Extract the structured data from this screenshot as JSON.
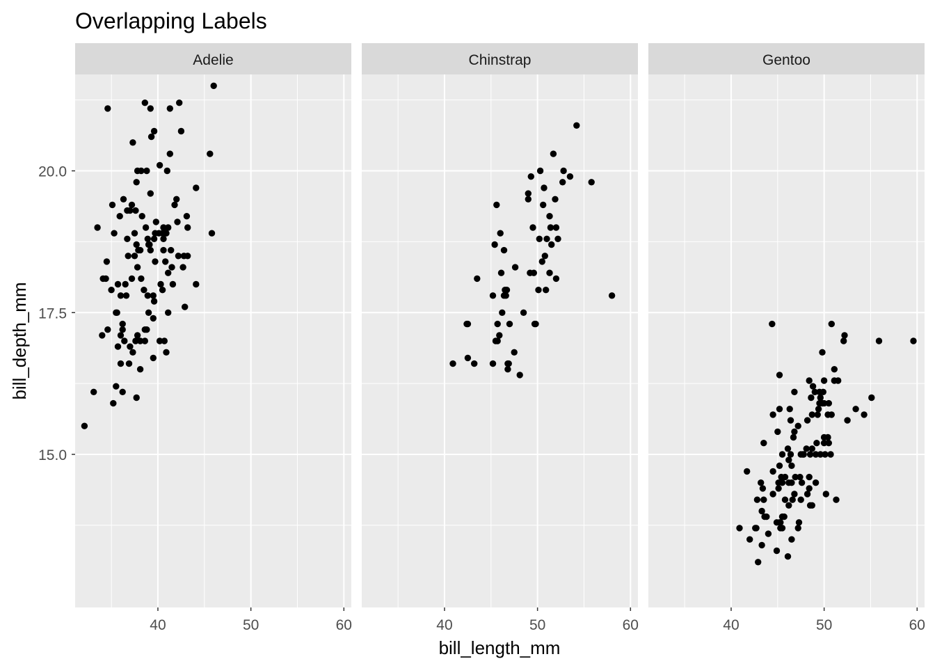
{
  "chart_data": {
    "type": "scatter",
    "title": "Overlapping Labels",
    "xlabel": "bill_length_mm",
    "ylabel": "bill_depth_mm",
    "xlim": [
      31.1,
      60.8
    ],
    "ylim": [
      12.3,
      21.7
    ],
    "x_ticks": [
      40,
      50,
      60
    ],
    "y_ticks": [
      15.0,
      17.5,
      20.0
    ],
    "y_tick_labels": [
      "15.0",
      "17.5",
      "20.0"
    ],
    "grid": true,
    "point_color": "#000000",
    "panel_background": "#ebebeb",
    "strip_background": "#d9d9d9",
    "panels": [
      {
        "label": "Adelie",
        "points": [
          [
            32.1,
            15.5
          ],
          [
            33.1,
            16.1
          ],
          [
            33.5,
            19.0
          ],
          [
            34.0,
            17.1
          ],
          [
            34.1,
            18.1
          ],
          [
            34.4,
            18.1
          ],
          [
            34.5,
            18.4
          ],
          [
            34.6,
            21.1
          ],
          [
            34.6,
            17.2
          ],
          [
            35.0,
            17.9
          ],
          [
            35.1,
            19.4
          ],
          [
            35.2,
            15.9
          ],
          [
            35.3,
            18.9
          ],
          [
            35.5,
            16.2
          ],
          [
            35.5,
            17.5
          ],
          [
            35.6,
            17.5
          ],
          [
            35.7,
            16.9
          ],
          [
            35.7,
            18.0
          ],
          [
            35.9,
            19.2
          ],
          [
            36.0,
            17.1
          ],
          [
            36.0,
            17.8
          ],
          [
            36.0,
            16.6
          ],
          [
            36.2,
            17.3
          ],
          [
            36.2,
            16.1
          ],
          [
            36.2,
            17.2
          ],
          [
            36.3,
            19.5
          ],
          [
            36.4,
            17.0
          ],
          [
            36.5,
            18.0
          ],
          [
            36.6,
            17.8
          ],
          [
            36.7,
            19.3
          ],
          [
            36.7,
            18.8
          ],
          [
            36.8,
            18.5
          ],
          [
            36.9,
            16.6
          ],
          [
            37.0,
            16.9
          ],
          [
            37.0,
            19.3
          ],
          [
            37.2,
            18.1
          ],
          [
            37.2,
            19.4
          ],
          [
            37.3,
            20.5
          ],
          [
            37.3,
            16.8
          ],
          [
            37.5,
            18.9
          ],
          [
            37.5,
            18.5
          ],
          [
            37.6,
            17.0
          ],
          [
            37.6,
            19.3
          ],
          [
            37.7,
            18.7
          ],
          [
            37.7,
            16.0
          ],
          [
            37.7,
            19.8
          ],
          [
            37.8,
            18.3
          ],
          [
            37.8,
            20.0
          ],
          [
            37.8,
            17.1
          ],
          [
            37.9,
            18.6
          ],
          [
            38.1,
            18.6
          ],
          [
            38.1,
            17.0
          ],
          [
            38.1,
            16.5
          ],
          [
            38.2,
            18.1
          ],
          [
            38.2,
            20.0
          ],
          [
            38.3,
            19.2
          ],
          [
            38.5,
            17.9
          ],
          [
            38.6,
            21.2
          ],
          [
            38.6,
            17.2
          ],
          [
            38.6,
            17.0
          ],
          [
            38.7,
            19.0
          ],
          [
            38.8,
            17.2
          ],
          [
            38.8,
            20.0
          ],
          [
            38.9,
            17.8
          ],
          [
            38.9,
            18.8
          ],
          [
            39.0,
            17.5
          ],
          [
            39.0,
            18.7
          ],
          [
            39.1,
            18.7
          ],
          [
            39.2,
            19.6
          ],
          [
            39.2,
            21.1
          ],
          [
            39.2,
            18.6
          ],
          [
            39.3,
            20.6
          ],
          [
            39.5,
            17.4
          ],
          [
            39.5,
            16.7
          ],
          [
            39.5,
            17.8
          ],
          [
            39.6,
            17.7
          ],
          [
            39.6,
            18.8
          ],
          [
            39.6,
            20.7
          ],
          [
            39.7,
            18.4
          ],
          [
            39.7,
            18.9
          ],
          [
            39.8,
            19.1
          ],
          [
            40.1,
            18.9
          ],
          [
            40.2,
            20.1
          ],
          [
            40.2,
            17.0
          ],
          [
            40.3,
            18.0
          ],
          [
            40.5,
            17.9
          ],
          [
            40.5,
            18.9
          ],
          [
            40.6,
            18.8
          ],
          [
            40.6,
            19.0
          ],
          [
            40.6,
            18.6
          ],
          [
            40.7,
            17.0
          ],
          [
            40.8,
            18.4
          ],
          [
            40.8,
            18.9
          ],
          [
            40.9,
            16.8
          ],
          [
            40.9,
            18.9
          ],
          [
            41.0,
            20.0
          ],
          [
            41.1,
            17.5
          ],
          [
            41.1,
            18.2
          ],
          [
            41.1,
            19.0
          ],
          [
            41.3,
            20.3
          ],
          [
            41.3,
            21.1
          ],
          [
            41.4,
            18.6
          ],
          [
            41.5,
            18.3
          ],
          [
            41.6,
            18.0
          ],
          [
            41.8,
            19.4
          ],
          [
            42.0,
            19.5
          ],
          [
            42.1,
            19.1
          ],
          [
            42.2,
            18.5
          ],
          [
            42.3,
            21.2
          ],
          [
            42.5,
            20.7
          ],
          [
            42.7,
            18.3
          ],
          [
            42.8,
            18.5
          ],
          [
            42.9,
            17.6
          ],
          [
            43.1,
            19.2
          ],
          [
            43.2,
            18.5
          ],
          [
            43.2,
            19.0
          ],
          [
            44.1,
            19.7
          ],
          [
            44.1,
            18.0
          ],
          [
            45.6,
            20.3
          ],
          [
            45.8,
            18.9
          ],
          [
            46.0,
            21.5
          ]
        ]
      },
      {
        "label": "Chinstrap",
        "points": [
          [
            40.9,
            16.6
          ],
          [
            42.4,
            17.3
          ],
          [
            42.5,
            17.3
          ],
          [
            42.5,
            16.7
          ],
          [
            43.2,
            16.6
          ],
          [
            43.5,
            18.1
          ],
          [
            45.2,
            17.8
          ],
          [
            45.2,
            16.6
          ],
          [
            45.4,
            18.7
          ],
          [
            45.5,
            17.0
          ],
          [
            45.6,
            19.4
          ],
          [
            45.7,
            17.0
          ],
          [
            45.7,
            17.3
          ],
          [
            45.9,
            17.1
          ],
          [
            46.0,
            18.9
          ],
          [
            46.1,
            18.2
          ],
          [
            46.2,
            17.5
          ],
          [
            46.4,
            18.6
          ],
          [
            46.4,
            17.8
          ],
          [
            46.5,
            17.9
          ],
          [
            46.6,
            17.8
          ],
          [
            46.7,
            17.9
          ],
          [
            46.8,
            16.5
          ],
          [
            46.8,
            16.6
          ],
          [
            46.9,
            16.6
          ],
          [
            47.0,
            17.3
          ],
          [
            47.5,
            16.8
          ],
          [
            47.6,
            18.3
          ],
          [
            48.1,
            16.4
          ],
          [
            48.5,
            17.5
          ],
          [
            49.0,
            19.5
          ],
          [
            49.0,
            19.6
          ],
          [
            49.2,
            18.2
          ],
          [
            49.3,
            19.9
          ],
          [
            49.5,
            19.0
          ],
          [
            49.6,
            18.2
          ],
          [
            49.7,
            17.3
          ],
          [
            49.8,
            17.3
          ],
          [
            50.1,
            17.9
          ],
          [
            50.2,
            18.8
          ],
          [
            50.3,
            20.0
          ],
          [
            50.5,
            18.4
          ],
          [
            50.6,
            19.4
          ],
          [
            50.7,
            19.7
          ],
          [
            50.8,
            18.5
          ],
          [
            50.9,
            17.9
          ],
          [
            51.0,
            18.8
          ],
          [
            51.3,
            19.2
          ],
          [
            51.3,
            18.2
          ],
          [
            51.4,
            19.0
          ],
          [
            51.5,
            18.7
          ],
          [
            51.7,
            20.3
          ],
          [
            51.9,
            19.5
          ],
          [
            52.0,
            18.1
          ],
          [
            52.0,
            19.0
          ],
          [
            52.2,
            18.8
          ],
          [
            52.7,
            19.8
          ],
          [
            52.8,
            20.0
          ],
          [
            53.5,
            19.9
          ],
          [
            54.2,
            20.8
          ],
          [
            55.8,
            19.8
          ],
          [
            58.0,
            17.8
          ]
        ]
      },
      {
        "label": "Gentoo",
        "points": [
          [
            40.9,
            13.7
          ],
          [
            41.7,
            14.7
          ],
          [
            42.0,
            13.5
          ],
          [
            42.6,
            13.7
          ],
          [
            42.7,
            13.7
          ],
          [
            42.8,
            14.2
          ],
          [
            42.9,
            13.1
          ],
          [
            43.2,
            14.5
          ],
          [
            43.3,
            14.0
          ],
          [
            43.3,
            13.4
          ],
          [
            43.4,
            14.4
          ],
          [
            43.5,
            14.2
          ],
          [
            43.5,
            15.2
          ],
          [
            43.6,
            13.9
          ],
          [
            43.8,
            13.9
          ],
          [
            44.0,
            13.6
          ],
          [
            44.4,
            17.3
          ],
          [
            44.5,
            14.3
          ],
          [
            44.5,
            15.7
          ],
          [
            44.5,
            14.7
          ],
          [
            44.9,
            13.8
          ],
          [
            44.9,
            13.3
          ],
          [
            45.0,
            15.4
          ],
          [
            45.1,
            14.5
          ],
          [
            45.1,
            14.4
          ],
          [
            45.2,
            13.8
          ],
          [
            45.2,
            14.8
          ],
          [
            45.2,
            15.8
          ],
          [
            45.2,
            16.4
          ],
          [
            45.3,
            13.7
          ],
          [
            45.3,
            13.8
          ],
          [
            45.4,
            14.6
          ],
          [
            45.5,
            13.7
          ],
          [
            45.5,
            13.9
          ],
          [
            45.5,
            14.5
          ],
          [
            45.5,
            15.0
          ],
          [
            45.7,
            13.9
          ],
          [
            45.8,
            14.2
          ],
          [
            45.8,
            14.6
          ],
          [
            46.1,
            13.2
          ],
          [
            46.1,
            15.1
          ],
          [
            46.2,
            14.5
          ],
          [
            46.2,
            14.1
          ],
          [
            46.2,
            14.9
          ],
          [
            46.3,
            15.8
          ],
          [
            46.4,
            15.0
          ],
          [
            46.4,
            15.6
          ],
          [
            46.5,
            14.5
          ],
          [
            46.5,
            14.8
          ],
          [
            46.5,
            13.5
          ],
          [
            46.6,
            14.2
          ],
          [
            46.7,
            15.3
          ],
          [
            46.8,
            14.3
          ],
          [
            46.8,
            15.4
          ],
          [
            46.8,
            16.1
          ],
          [
            46.9,
            14.6
          ],
          [
            47.2,
            13.7
          ],
          [
            47.2,
            15.5
          ],
          [
            47.3,
            13.8
          ],
          [
            47.4,
            14.6
          ],
          [
            47.5,
            14.2
          ],
          [
            47.5,
            15.0
          ],
          [
            47.6,
            14.5
          ],
          [
            47.7,
            15.0
          ],
          [
            47.8,
            15.0
          ],
          [
            48.1,
            15.1
          ],
          [
            48.2,
            14.3
          ],
          [
            48.2,
            15.6
          ],
          [
            48.4,
            14.4
          ],
          [
            48.4,
            14.6
          ],
          [
            48.4,
            16.3
          ],
          [
            48.5,
            14.1
          ],
          [
            48.5,
            15.0
          ],
          [
            48.6,
            16.0
          ],
          [
            48.7,
            14.1
          ],
          [
            48.7,
            15.1
          ],
          [
            48.7,
            15.7
          ],
          [
            48.8,
            16.2
          ],
          [
            49.0,
            16.1
          ],
          [
            49.1,
            14.5
          ],
          [
            49.1,
            15.0
          ],
          [
            49.2,
            15.2
          ],
          [
            49.3,
            15.7
          ],
          [
            49.4,
            15.8
          ],
          [
            49.5,
            15.9
          ],
          [
            49.5,
            16.1
          ],
          [
            49.6,
            15.0
          ],
          [
            49.6,
            16.0
          ],
          [
            49.8,
            15.9
          ],
          [
            49.8,
            16.8
          ],
          [
            49.9,
            16.1
          ],
          [
            50.0,
            15.2
          ],
          [
            50.0,
            15.3
          ],
          [
            50.0,
            15.9
          ],
          [
            50.0,
            16.3
          ],
          [
            50.1,
            15.0
          ],
          [
            50.2,
            14.3
          ],
          [
            50.4,
            15.3
          ],
          [
            50.4,
            15.7
          ],
          [
            50.5,
            15.2
          ],
          [
            50.5,
            15.9
          ],
          [
            50.7,
            15.0
          ],
          [
            50.8,
            15.7
          ],
          [
            50.8,
            17.3
          ],
          [
            51.1,
            16.3
          ],
          [
            51.1,
            16.5
          ],
          [
            51.3,
            14.2
          ],
          [
            51.5,
            16.3
          ],
          [
            52.1,
            17.0
          ],
          [
            52.2,
            17.1
          ],
          [
            52.5,
            15.6
          ],
          [
            53.4,
            15.8
          ],
          [
            54.3,
            15.7
          ],
          [
            55.1,
            16.0
          ],
          [
            55.9,
            17.0
          ],
          [
            59.6,
            17.0
          ]
        ]
      }
    ]
  }
}
